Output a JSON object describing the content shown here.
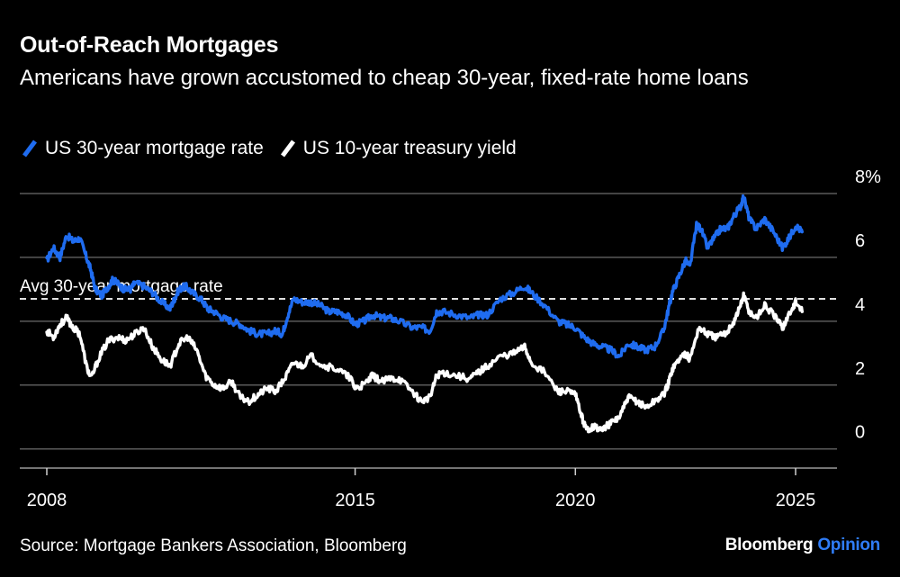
{
  "title": "Out-of-Reach Mortgages",
  "subtitle": "Americans have grown accustomed to cheap 30-year, fixed-rate home loans",
  "source": "Source: Mortgage Bankers Association, Bloomberg",
  "brand": {
    "name": "Bloomberg",
    "suffix": "Opinion"
  },
  "colors": {
    "mortgage": "#1f6cf0",
    "treasury": "#ffffff",
    "accent": "#2f7cf6",
    "grid": "#5a5a5a"
  },
  "chart_data": {
    "type": "line",
    "title": "Out-of-Reach Mortgages",
    "xlabel": "",
    "ylabel": "%",
    "xlim": [
      2008.0,
      2026.0
    ],
    "ylim": [
      -0.6,
      8
    ],
    "y_ticks": [
      0,
      2,
      4,
      6,
      8
    ],
    "y_tick_labels": [
      "0",
      "2",
      "4",
      "6",
      "8%"
    ],
    "x_ticks": [
      2008,
      2015,
      2020,
      2025
    ],
    "x_tick_labels": [
      "2008",
      "2015",
      "2020",
      "2025"
    ],
    "grid": true,
    "legend_position": "top-left",
    "annotation": {
      "label": "Avg 30-year mortgage rate",
      "value": 4.7
    },
    "series": [
      {
        "name": "US 30-year mortgage rate",
        "color": "#1f6cf0",
        "x": [
          2008.0,
          2008.15,
          2008.3,
          2008.45,
          2008.6,
          2008.75,
          2008.9,
          2009.0,
          2009.1,
          2009.25,
          2009.4,
          2009.5,
          2009.6,
          2009.75,
          2009.9,
          2010.0,
          2010.2,
          2010.4,
          2010.6,
          2010.8,
          2010.9,
          2011.0,
          2011.15,
          2011.3,
          2011.5,
          2011.65,
          2011.8,
          2012.0,
          2012.2,
          2012.4,
          2012.6,
          2012.8,
          2013.0,
          2013.2,
          2013.35,
          2013.45,
          2013.6,
          2013.8,
          2014.0,
          2014.2,
          2014.4,
          2014.6,
          2014.8,
          2015.0,
          2015.2,
          2015.4,
          2015.6,
          2015.8,
          2016.0,
          2016.3,
          2016.5,
          2016.7,
          2016.85,
          2017.0,
          2017.3,
          2017.6,
          2017.8,
          2018.0,
          2018.3,
          2018.6,
          2018.85,
          2019.0,
          2019.3,
          2019.6,
          2019.8,
          2020.0,
          2020.2,
          2020.4,
          2020.6,
          2020.8,
          2021.0,
          2021.2,
          2021.4,
          2021.6,
          2021.8,
          2022.0,
          2022.1,
          2022.2,
          2022.35,
          2022.5,
          2022.6,
          2022.75,
          2022.85,
          2023.0,
          2023.15,
          2023.3,
          2023.45,
          2023.6,
          2023.75,
          2023.82,
          2023.95,
          2024.1,
          2024.3,
          2024.5,
          2024.7,
          2024.85,
          2025.0,
          2025.15
        ],
        "y": [
          5.9,
          6.3,
          6.0,
          6.7,
          6.5,
          6.6,
          6.0,
          5.6,
          5.0,
          4.8,
          5.1,
          5.3,
          5.2,
          5.0,
          5.0,
          5.2,
          5.1,
          4.9,
          4.6,
          4.4,
          4.7,
          5.0,
          5.1,
          4.9,
          4.7,
          4.4,
          4.3,
          4.1,
          4.0,
          3.9,
          3.7,
          3.6,
          3.6,
          3.7,
          3.6,
          4.1,
          4.7,
          4.6,
          4.6,
          4.5,
          4.3,
          4.3,
          4.2,
          3.9,
          4.0,
          4.2,
          4.1,
          4.1,
          4.0,
          3.8,
          3.8,
          3.7,
          4.3,
          4.3,
          4.2,
          4.1,
          4.2,
          4.2,
          4.7,
          4.9,
          5.1,
          4.9,
          4.5,
          4.0,
          3.9,
          3.8,
          3.5,
          3.3,
          3.2,
          3.1,
          2.9,
          3.3,
          3.2,
          3.1,
          3.2,
          3.7,
          4.3,
          4.9,
          5.4,
          5.9,
          5.7,
          7.0,
          6.9,
          6.3,
          6.6,
          6.9,
          6.9,
          7.3,
          7.6,
          7.9,
          7.2,
          6.9,
          7.2,
          6.8,
          6.3,
          6.6,
          7.0,
          6.8
        ]
      },
      {
        "name": "US 10-year treasury yield",
        "color": "#ffffff",
        "x": [
          2008.0,
          2008.15,
          2008.3,
          2008.45,
          2008.6,
          2008.75,
          2008.9,
          2009.0,
          2009.2,
          2009.4,
          2009.6,
          2009.8,
          2010.0,
          2010.2,
          2010.4,
          2010.6,
          2010.8,
          2011.0,
          2011.2,
          2011.4,
          2011.6,
          2011.8,
          2012.0,
          2012.2,
          2012.4,
          2012.6,
          2012.8,
          2013.0,
          2013.2,
          2013.4,
          2013.6,
          2013.8,
          2014.0,
          2014.3,
          2014.6,
          2014.9,
          2015.0,
          2015.2,
          2015.4,
          2015.6,
          2015.8,
          2016.0,
          2016.3,
          2016.5,
          2016.7,
          2016.85,
          2017.0,
          2017.3,
          2017.6,
          2017.8,
          2018.0,
          2018.3,
          2018.6,
          2018.85,
          2019.0,
          2019.3,
          2019.6,
          2019.8,
          2020.0,
          2020.15,
          2020.25,
          2020.4,
          2020.6,
          2020.8,
          2021.0,
          2021.2,
          2021.4,
          2021.6,
          2021.8,
          2022.0,
          2022.1,
          2022.2,
          2022.35,
          2022.5,
          2022.6,
          2022.8,
          2023.0,
          2023.2,
          2023.4,
          2023.6,
          2023.75,
          2023.82,
          2023.95,
          2024.1,
          2024.3,
          2024.5,
          2024.7,
          2024.85,
          2025.0,
          2025.15
        ],
        "y": [
          3.7,
          3.5,
          3.9,
          4.1,
          3.8,
          3.6,
          2.6,
          2.2,
          2.9,
          3.4,
          3.5,
          3.4,
          3.6,
          3.8,
          3.2,
          2.8,
          2.6,
          3.3,
          3.5,
          3.1,
          2.3,
          2.0,
          1.9,
          2.1,
          1.6,
          1.5,
          1.7,
          1.9,
          1.8,
          2.2,
          2.7,
          2.6,
          2.9,
          2.6,
          2.5,
          2.2,
          1.9,
          2.0,
          2.3,
          2.1,
          2.2,
          2.2,
          1.8,
          1.5,
          1.6,
          2.3,
          2.4,
          2.3,
          2.2,
          2.4,
          2.6,
          2.9,
          3.0,
          3.2,
          2.7,
          2.4,
          1.8,
          1.8,
          1.7,
          1.0,
          0.6,
          0.7,
          0.6,
          0.8,
          1.0,
          1.6,
          1.5,
          1.3,
          1.5,
          1.7,
          2.0,
          2.5,
          2.8,
          3.0,
          2.8,
          3.8,
          3.6,
          3.5,
          3.6,
          4.0,
          4.5,
          4.8,
          4.3,
          4.1,
          4.5,
          4.2,
          3.8,
          4.2,
          4.6,
          4.3
        ]
      }
    ]
  }
}
